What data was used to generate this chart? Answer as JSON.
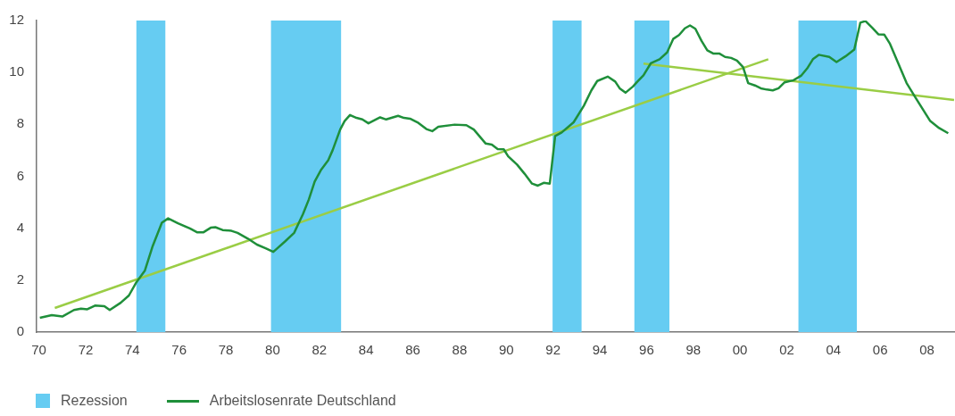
{
  "chart_data": {
    "type": "line",
    "xlim": [
      1969.9,
      2009.2
    ],
    "xticks": [
      {
        "value": 1970,
        "label": "70"
      },
      {
        "value": 1972,
        "label": "72"
      },
      {
        "value": 1974,
        "label": "74"
      },
      {
        "value": 1976,
        "label": "76"
      },
      {
        "value": 1978,
        "label": "78"
      },
      {
        "value": 1980,
        "label": "80"
      },
      {
        "value": 1982,
        "label": "82"
      },
      {
        "value": 1984,
        "label": "84"
      },
      {
        "value": 1986,
        "label": "86"
      },
      {
        "value": 1988,
        "label": "88"
      },
      {
        "value": 1990,
        "label": "90"
      },
      {
        "value": 1992,
        "label": "92"
      },
      {
        "value": 1994,
        "label": "94"
      },
      {
        "value": 1996,
        "label": "96"
      },
      {
        "value": 1998,
        "label": "98"
      },
      {
        "value": 2000,
        "label": "00"
      },
      {
        "value": 2002,
        "label": "02"
      },
      {
        "value": 2004,
        "label": "04"
      },
      {
        "value": 2006,
        "label": "06"
      },
      {
        "value": 2008,
        "label": "08"
      }
    ],
    "ylim": [
      0,
      12
    ],
    "yticks": [
      0,
      2,
      4,
      6,
      8,
      10,
      12
    ],
    "legend": "bottom left",
    "marker": "none",
    "bands": [
      {
        "axis": "x",
        "from": 1974.17,
        "to": 1975.41,
        "label": "Rezession",
        "color": "#66ccf2"
      },
      {
        "axis": "x",
        "from": 1979.93,
        "to": 1982.93,
        "color": "#66ccf2"
      },
      {
        "axis": "x",
        "from": 1991.98,
        "to": 1993.22,
        "color": "#66ccf2"
      },
      {
        "axis": "x",
        "from": 1995.48,
        "to": 1996.98,
        "color": "#66ccf2"
      },
      {
        "axis": "x",
        "from": 2002.5,
        "to": 2005.0,
        "color": "#66ccf2"
      }
    ],
    "series": [
      {
        "name": "Arbeitslosenrate Deutschland",
        "color": "#1f8f3a",
        "x": [
          1970.04,
          1970.55,
          1971.0,
          1971.5,
          1971.8,
          1972.07,
          1972.4,
          1972.8,
          1973.03,
          1973.5,
          1973.85,
          1974.17,
          1974.53,
          1974.87,
          1975.26,
          1975.53,
          1975.95,
          1976.46,
          1976.78,
          1977.03,
          1977.35,
          1977.55,
          1977.86,
          1978.24,
          1978.5,
          1978.94,
          1979.33,
          1979.7,
          1980.03,
          1980.53,
          1980.92,
          1981.3,
          1981.55,
          1981.8,
          1982.06,
          1982.38,
          1982.57,
          1982.89,
          1983.08,
          1983.31,
          1983.59,
          1983.84,
          1984.1,
          1984.6,
          1984.86,
          1985.37,
          1985.62,
          1985.88,
          1986.2,
          1986.58,
          1986.83,
          1987.09,
          1987.79,
          1988.29,
          1988.61,
          1989.12,
          1989.38,
          1989.63,
          1989.89,
          1990.08,
          1990.46,
          1990.78,
          1991.1,
          1991.35,
          1991.6,
          1991.86,
          1992.09,
          1992.37,
          1992.88,
          1993.32,
          1993.64,
          1993.89,
          1994.34,
          1994.66,
          1994.85,
          1995.1,
          1995.42,
          1995.61,
          1995.87,
          1996.18,
          1996.56,
          1996.88,
          1997.14,
          1997.39,
          1997.64,
          1997.86,
          1998.09,
          1998.35,
          1998.6,
          1998.85,
          1999.11,
          1999.36,
          1999.62,
          1999.87,
          2000.13,
          2000.35,
          2000.64,
          2000.89,
          2001.15,
          2001.4,
          2001.65,
          2001.91,
          2002.29,
          2002.61,
          2002.87,
          2003.12,
          2003.37,
          2003.82,
          2004.13,
          2004.51,
          2004.89,
          2005.15,
          2005.37,
          2005.66,
          2005.92,
          2006.17,
          2006.42,
          2007.13,
          2007.51,
          2008.14,
          2008.52,
          2008.91
        ],
        "values": [
          0.55,
          0.65,
          0.6,
          0.85,
          0.9,
          0.88,
          1.02,
          1.0,
          0.85,
          1.13,
          1.41,
          1.92,
          2.36,
          3.32,
          4.21,
          4.38,
          4.19,
          3.99,
          3.84,
          3.84,
          4.02,
          4.04,
          3.93,
          3.9,
          3.82,
          3.6,
          3.37,
          3.23,
          3.09,
          3.49,
          3.82,
          4.55,
          5.11,
          5.8,
          6.23,
          6.62,
          7.01,
          7.8,
          8.13,
          8.36,
          8.25,
          8.19,
          8.04,
          8.27,
          8.19,
          8.33,
          8.25,
          8.22,
          8.08,
          7.82,
          7.74,
          7.91,
          7.99,
          7.97,
          7.8,
          7.26,
          7.22,
          7.05,
          7.04,
          6.77,
          6.45,
          6.1,
          5.72,
          5.64,
          5.75,
          5.72,
          7.55,
          7.69,
          8.08,
          8.72,
          9.31,
          9.67,
          9.84,
          9.65,
          9.39,
          9.22,
          9.46,
          9.65,
          9.89,
          10.35,
          10.51,
          10.77,
          11.29,
          11.44,
          11.7,
          11.81,
          11.68,
          11.22,
          10.85,
          10.73,
          10.73,
          10.6,
          10.56,
          10.46,
          10.21,
          9.59,
          9.5,
          9.39,
          9.34,
          9.31,
          9.39,
          9.62,
          9.7,
          9.87,
          10.15,
          10.51,
          10.68,
          10.6,
          10.4,
          10.62,
          10.88,
          11.92,
          11.98,
          11.72,
          11.47,
          11.46,
          11.1,
          9.59,
          9.03,
          8.13,
          7.86,
          7.66
        ]
      },
      {
        "type": "line",
        "color": "#9acd45",
        "x": [
          1970.68,
          2001.21
        ],
        "values": [
          0.93,
          10.51
        ]
      },
      {
        "type": "line",
        "color": "#9acd45",
        "x": [
          1995.87,
          2009.16
        ],
        "values": [
          10.34,
          8.94
        ]
      }
    ]
  }
}
